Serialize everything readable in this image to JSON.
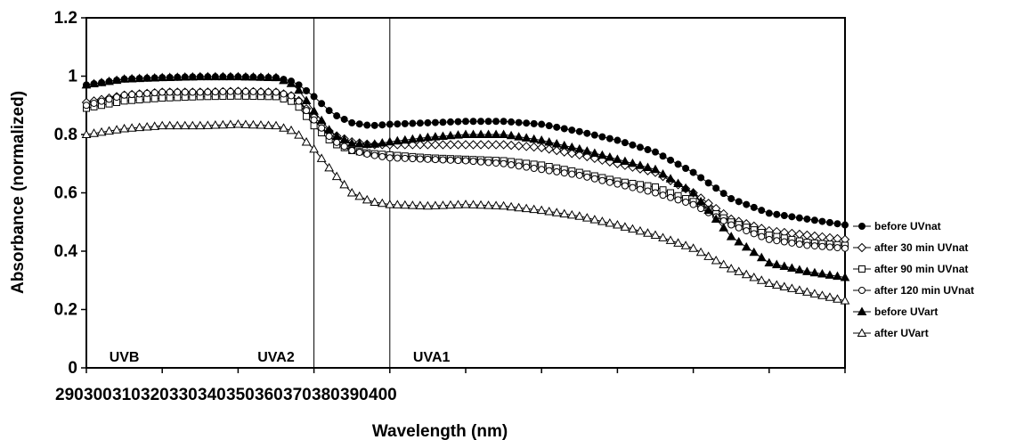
{
  "chart_data": {
    "type": "line",
    "xlabel": "Wavelength (nm)",
    "ylabel": "Absorbance (normalized)",
    "ylim": [
      0,
      1.2
    ],
    "xlim": [
      290,
      490
    ],
    "yticks": [
      "0",
      "0.2",
      "0.4",
      "0.6",
      "0.8",
      "1",
      "1.2"
    ],
    "x_category_labels": [
      "290",
      "300",
      "310",
      "320",
      "330",
      "340",
      "350",
      "360",
      "370",
      "380",
      "390",
      "400"
    ],
    "grid": false,
    "legend": "right",
    "regions": [
      {
        "label": "UVB",
        "x": 300
      },
      {
        "label": "UVA2",
        "x": 340
      },
      {
        "label": "UVA1",
        "x": 381
      }
    ],
    "dividers_x": [
      350,
      370
    ],
    "series": [
      {
        "name": "before UVnat",
        "marker": "filled-circle",
        "x": [
          290,
          300,
          310,
          320,
          330,
          340,
          345,
          350,
          355,
          360,
          365,
          370,
          380,
          390,
          400,
          410,
          420,
          430,
          440,
          450,
          460,
          470,
          480,
          490
        ],
        "y": [
          0.97,
          0.99,
          0.995,
          0.998,
          0.998,
          0.995,
          0.98,
          0.93,
          0.87,
          0.84,
          0.83,
          0.835,
          0.84,
          0.845,
          0.845,
          0.835,
          0.81,
          0.78,
          0.74,
          0.67,
          0.58,
          0.53,
          0.51,
          0.49
        ]
      },
      {
        "name": "after 30 min UVnat",
        "marker": "open-diamond",
        "x": [
          290,
          300,
          310,
          320,
          330,
          340,
          345,
          350,
          355,
          360,
          365,
          370,
          380,
          390,
          400,
          410,
          420,
          430,
          440,
          450,
          460,
          470,
          480,
          490
        ],
        "y": [
          0.91,
          0.935,
          0.945,
          0.945,
          0.948,
          0.945,
          0.93,
          0.86,
          0.8,
          0.775,
          0.765,
          0.765,
          0.765,
          0.765,
          0.765,
          0.755,
          0.73,
          0.7,
          0.67,
          0.6,
          0.51,
          0.47,
          0.455,
          0.44
        ]
      },
      {
        "name": "after 90 min UVnat",
        "marker": "open-square",
        "x": [
          290,
          300,
          310,
          320,
          330,
          340,
          345,
          350,
          355,
          360,
          365,
          370,
          380,
          390,
          400,
          410,
          420,
          430,
          440,
          450,
          460,
          470,
          480,
          490
        ],
        "y": [
          0.89,
          0.915,
          0.925,
          0.93,
          0.932,
          0.93,
          0.91,
          0.83,
          0.77,
          0.745,
          0.735,
          0.73,
          0.72,
          0.715,
          0.71,
          0.695,
          0.67,
          0.64,
          0.62,
          0.57,
          0.5,
          0.455,
          0.43,
          0.42
        ]
      },
      {
        "name": "after 120 min UVnat",
        "marker": "open-circle",
        "x": [
          290,
          300,
          310,
          320,
          330,
          340,
          345,
          350,
          355,
          360,
          365,
          370,
          380,
          390,
          400,
          410,
          420,
          430,
          440,
          450,
          460,
          470,
          480,
          490
        ],
        "y": [
          0.9,
          0.935,
          0.945,
          0.945,
          0.948,
          0.945,
          0.93,
          0.85,
          0.78,
          0.745,
          0.73,
          0.72,
          0.715,
          0.71,
          0.7,
          0.68,
          0.66,
          0.63,
          0.6,
          0.56,
          0.49,
          0.44,
          0.42,
          0.41
        ]
      },
      {
        "name": "before UVart",
        "marker": "filled-triangle",
        "x": [
          290,
          300,
          310,
          320,
          330,
          340,
          345,
          350,
          355,
          360,
          365,
          370,
          380,
          390,
          400,
          410,
          420,
          430,
          440,
          450,
          460,
          470,
          480,
          490
        ],
        "y": [
          0.97,
          0.99,
          0.995,
          0.998,
          0.998,
          0.995,
          0.97,
          0.88,
          0.8,
          0.77,
          0.765,
          0.775,
          0.79,
          0.8,
          0.8,
          0.78,
          0.75,
          0.715,
          0.68,
          0.6,
          0.45,
          0.36,
          0.33,
          0.31
        ]
      },
      {
        "name": "after UVart",
        "marker": "open-triangle",
        "x": [
          290,
          300,
          310,
          320,
          330,
          340,
          345,
          350,
          355,
          360,
          365,
          370,
          380,
          390,
          400,
          410,
          420,
          430,
          440,
          450,
          460,
          470,
          480,
          490
        ],
        "y": [
          0.8,
          0.82,
          0.83,
          0.83,
          0.835,
          0.83,
          0.81,
          0.75,
          0.67,
          0.6,
          0.57,
          0.56,
          0.555,
          0.56,
          0.555,
          0.54,
          0.52,
          0.49,
          0.455,
          0.41,
          0.34,
          0.29,
          0.26,
          0.23
        ]
      }
    ]
  }
}
